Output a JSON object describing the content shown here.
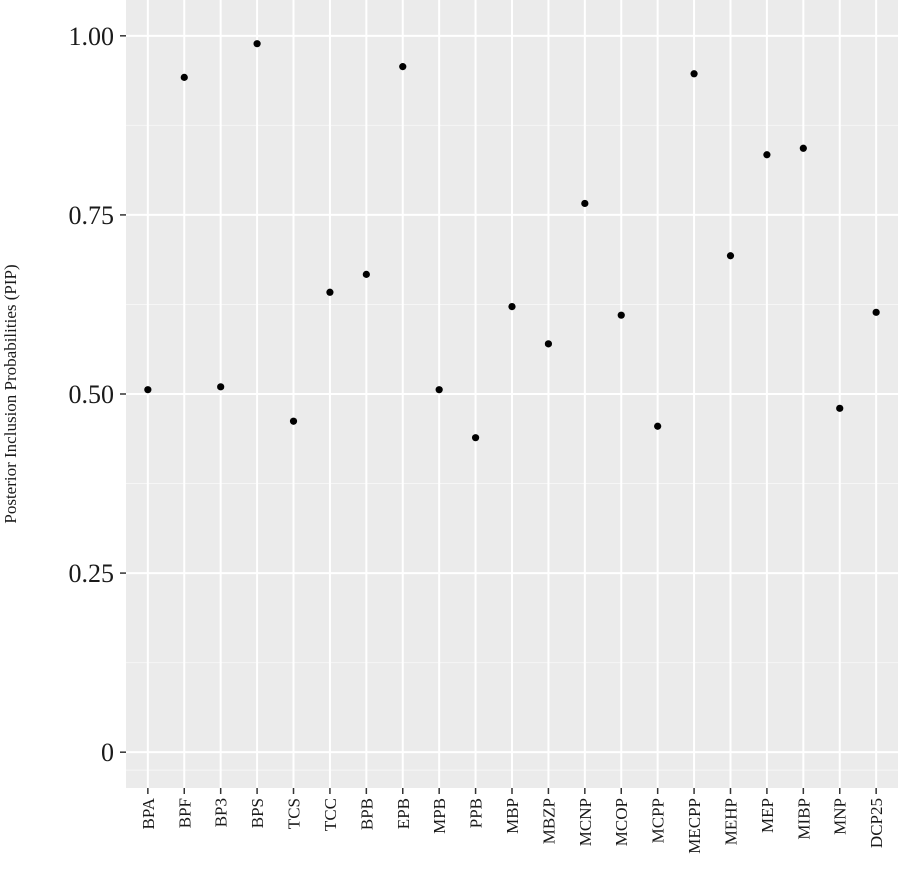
{
  "chart_data": {
    "type": "scatter",
    "title": "",
    "xlabel": "",
    "ylabel": "Posterior Inclusion Probabilities (PIP)",
    "categories": [
      "BPA",
      "BPF",
      "BP3",
      "BPS",
      "TCS",
      "TCC",
      "BPB",
      "EPB",
      "MPB",
      "PPB",
      "MBP",
      "MBZP",
      "MCNP",
      "MCOP",
      "MCPP",
      "MECPP",
      "MEHP",
      "MEP",
      "MIBP",
      "MNP",
      "DCP25"
    ],
    "series": [
      {
        "values": [
          0.506,
          0.942,
          0.51,
          0.989,
          0.462,
          0.642,
          0.667,
          0.957,
          0.506,
          0.439,
          0.622,
          0.57,
          0.766,
          0.61,
          0.455,
          0.947,
          0.693,
          0.834,
          0.843,
          0.48,
          0.614
        ]
      }
    ],
    "ylim": [
      -0.05,
      1.05
    ],
    "yticks": [
      0,
      0.25,
      0.5,
      0.75,
      1.0
    ],
    "ytick_labels": [
      "0",
      "0.25",
      "0.50",
      "0.75",
      "1.00"
    ],
    "grid": true,
    "legend": "none",
    "colors": {
      "panel": "#ebebeb",
      "grid_major": "#ffffff",
      "grid_minor": "#f6f6f6",
      "point": "#000000"
    }
  }
}
